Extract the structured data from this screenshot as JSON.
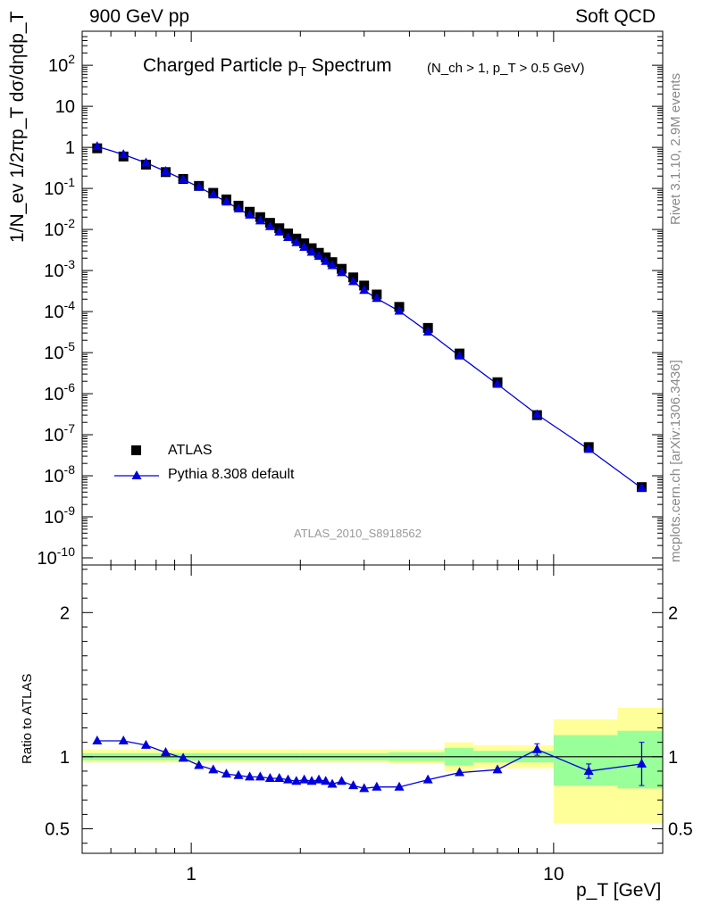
{
  "header": {
    "left": "900 GeV pp",
    "right": "Soft QCD"
  },
  "side_labels": {
    "rivet": "Rivet 3.1.10,  2.9M events",
    "mcplots": "mcplots.cern.ch [arXiv:1306.3436]"
  },
  "chart_data": [
    {
      "type": "scatter",
      "title_main": "Charged Particle p",
      "title_sub_T": "T",
      "title_word": " Spectrum",
      "title_cut": "(N_ch > 1, p_T > 0.5 GeV)",
      "ylabel": "1/N_ev 1/2πp_T dσ/dηdp_T",
      "xscale": "log",
      "yscale": "log",
      "xlim": [
        0.5,
        20
      ],
      "ylim": [
        1e-10,
        500
      ],
      "y_ticks": [
        "10^2",
        "10",
        "1",
        "10^-1",
        "10^-2",
        "10^-3",
        "10^-4",
        "10^-5",
        "10^-6",
        "10^-7",
        "10^-8",
        "10^-9",
        "10^-10"
      ],
      "watermark": "ATLAS_2010_S8918562",
      "legend": [
        "ATLAS",
        "Pythia 8.308 default"
      ],
      "legend_position": "bottom-left",
      "series": [
        {
          "name": "ATLAS",
          "marker": "square",
          "color": "#000000",
          "x": [
            0.55,
            0.65,
            0.75,
            0.85,
            0.95,
            1.05,
            1.15,
            1.25,
            1.35,
            1.45,
            1.55,
            1.65,
            1.75,
            1.85,
            1.95,
            2.05,
            2.15,
            2.25,
            2.35,
            2.45,
            2.6,
            2.8,
            3.0,
            3.25,
            3.75,
            4.5,
            5.5,
            7.0,
            9.0,
            12.5,
            17.5
          ],
          "y": [
            0.95,
            0.6,
            0.38,
            0.25,
            0.17,
            0.115,
            0.078,
            0.054,
            0.038,
            0.027,
            0.02,
            0.0145,
            0.0107,
            0.008,
            0.006,
            0.0046,
            0.0035,
            0.0027,
            0.0021,
            0.0016,
            0.0011,
            0.00068,
            0.00043,
            0.00026,
            0.00013,
            4e-05,
            9.5e-06,
            1.9e-06,
            3e-07,
            5e-08,
            5.3e-09
          ]
        },
        {
          "name": "Pythia 8.308 default",
          "marker": "triangle",
          "color": "#0000dd",
          "x": [
            0.55,
            0.65,
            0.75,
            0.85,
            0.95,
            1.05,
            1.15,
            1.25,
            1.35,
            1.45,
            1.55,
            1.65,
            1.75,
            1.85,
            1.95,
            2.05,
            2.15,
            2.25,
            2.35,
            2.45,
            2.6,
            2.8,
            3.0,
            3.25,
            3.75,
            4.5,
            5.5,
            7.0,
            9.0,
            12.5,
            17.5
          ],
          "y": [
            1.05,
            0.67,
            0.42,
            0.26,
            0.165,
            0.108,
            0.07,
            0.047,
            0.032,
            0.0225,
            0.0163,
            0.0118,
            0.0087,
            0.0064,
            0.0048,
            0.0037,
            0.0028,
            0.00222,
            0.00168,
            0.00132,
            0.00089,
            0.00054,
            0.00033,
            0.00021,
            0.000103,
            3.2e-05,
            8.3e-06,
            1.7e-06,
            3.1e-07,
            4.4e-08,
            5e-09
          ]
        }
      ]
    },
    {
      "type": "line",
      "ylabel": "Ratio to ATLAS",
      "xlabel": "p_T  [GeV]",
      "xscale": "log",
      "xlim": [
        0.5,
        20
      ],
      "ylim": [
        0.33,
        2.33
      ],
      "x_tick_labels": [
        "1",
        "10"
      ],
      "y_tick_labels": [
        "0.5",
        "1",
        "2"
      ],
      "reference_line": 1,
      "uncertainty_bands": {
        "edges": [
          0.5,
          1.0,
          2.0,
          3.5,
          5.0,
          6.0,
          8.0,
          10.0,
          15.0,
          20.0
        ],
        "yellow": [
          [
            0.96,
            1.05
          ],
          [
            0.96,
            1.05
          ],
          [
            0.96,
            1.05
          ],
          [
            0.95,
            1.05
          ],
          [
            0.9,
            1.1
          ],
          [
            0.92,
            1.08
          ],
          [
            0.92,
            1.08
          ],
          [
            0.54,
            1.26
          ],
          [
            0.54,
            1.34
          ]
        ],
        "green": [
          [
            0.975,
            1.025
          ],
          [
            0.975,
            1.025
          ],
          [
            0.975,
            1.025
          ],
          [
            0.97,
            1.03
          ],
          [
            0.94,
            1.06
          ],
          [
            0.96,
            1.04
          ],
          [
            0.96,
            1.04
          ],
          [
            0.8,
            1.15
          ],
          [
            0.78,
            1.18
          ]
        ]
      },
      "series": [
        {
          "name": "Pythia 8.308 default",
          "color": "#0000dd",
          "x": [
            0.55,
            0.65,
            0.75,
            0.85,
            0.95,
            1.05,
            1.15,
            1.25,
            1.35,
            1.45,
            1.55,
            1.65,
            1.75,
            1.85,
            1.95,
            2.05,
            2.15,
            2.25,
            2.35,
            2.45,
            2.6,
            2.8,
            3.0,
            3.25,
            3.75,
            4.5,
            5.5,
            7.0,
            9.0,
            12.5,
            17.5
          ],
          "y": [
            1.11,
            1.11,
            1.08,
            1.03,
            0.99,
            0.94,
            0.91,
            0.88,
            0.87,
            0.86,
            0.86,
            0.85,
            0.85,
            0.84,
            0.83,
            0.84,
            0.83,
            0.84,
            0.83,
            0.81,
            0.83,
            0.8,
            0.78,
            0.79,
            0.79,
            0.84,
            0.89,
            0.91,
            1.05,
            0.9,
            0.95
          ],
          "err": [
            0,
            0,
            0,
            0,
            0,
            0,
            0,
            0,
            0,
            0,
            0,
            0,
            0,
            0,
            0,
            0,
            0,
            0,
            0,
            0,
            0,
            0,
            0,
            0,
            0,
            0,
            0,
            0,
            0.04,
            0.05,
            0.15
          ]
        }
      ]
    }
  ]
}
